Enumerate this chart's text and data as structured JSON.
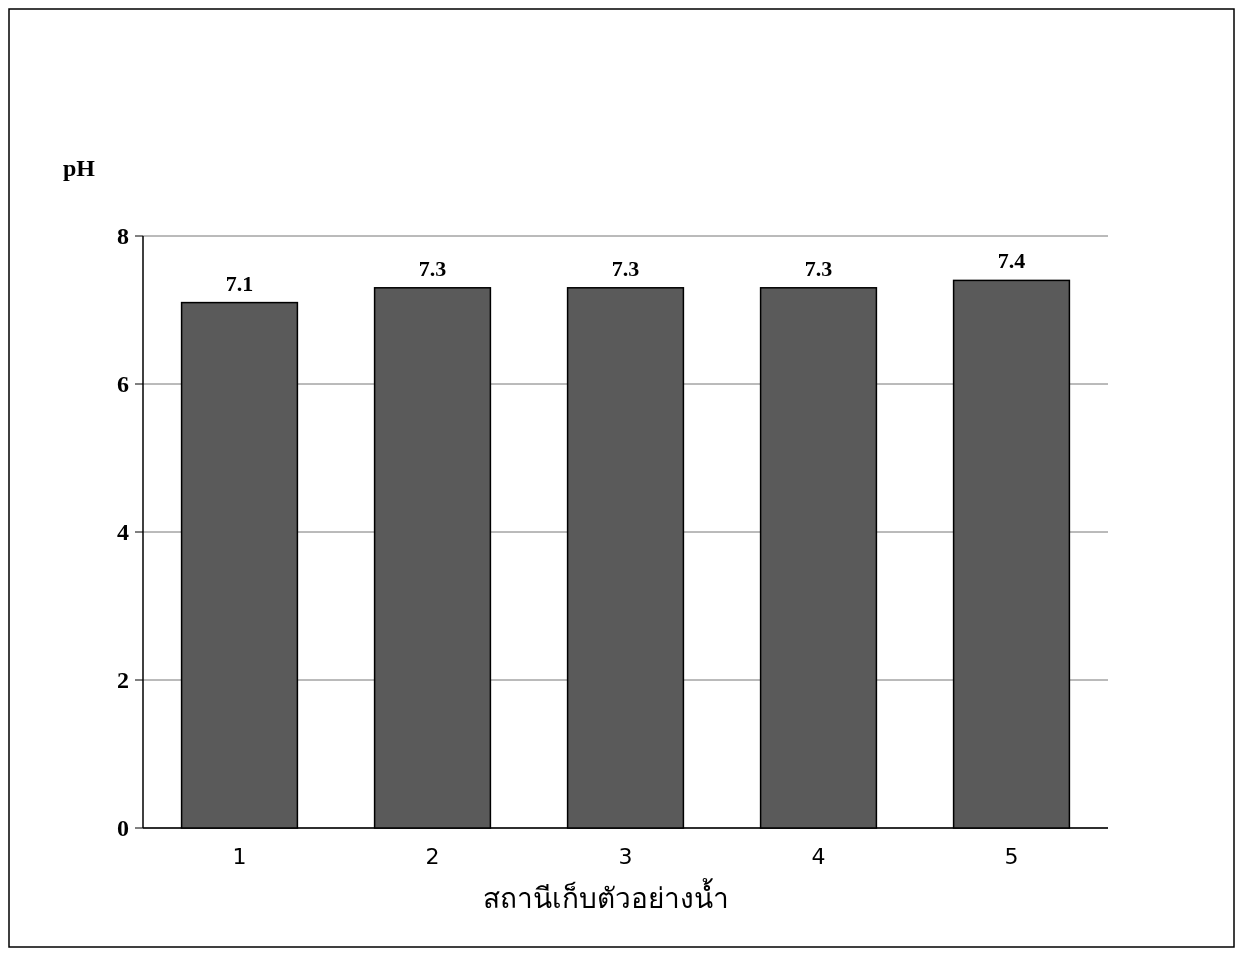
{
  "chart_data": {
    "type": "bar",
    "ylabel": "pH",
    "xlabel": "สถานีเก็บตัวอย่างน้ำ",
    "categories": [
      "1",
      "2",
      "3",
      "4",
      "5"
    ],
    "values": [
      7.1,
      7.3,
      7.3,
      7.3,
      7.4
    ],
    "color": "#5a5a5a",
    "ylim": [
      0,
      8
    ],
    "yticks": [
      0,
      2,
      4,
      6,
      8
    ],
    "grid": "y",
    "data_labels": true
  }
}
